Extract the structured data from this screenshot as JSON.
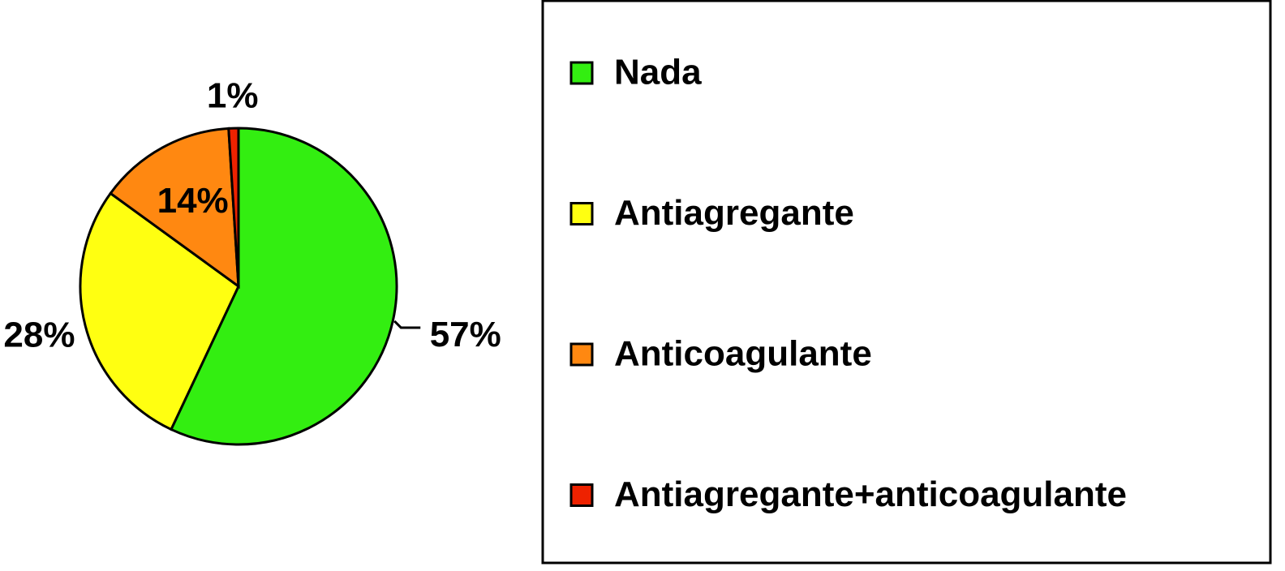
{
  "chart_data": {
    "type": "pie",
    "categories": [
      "Nada",
      "Antiagregante",
      "Anticoagulante",
      "Antiagregante+anticoagulante"
    ],
    "values": [
      57,
      28,
      14,
      1
    ],
    "value_labels": [
      "57%",
      "28%",
      "14%",
      "1%"
    ],
    "colors": [
      "#33ee11",
      "#ffff11",
      "#ff8811",
      "#ee2200"
    ],
    "legend": "right"
  }
}
